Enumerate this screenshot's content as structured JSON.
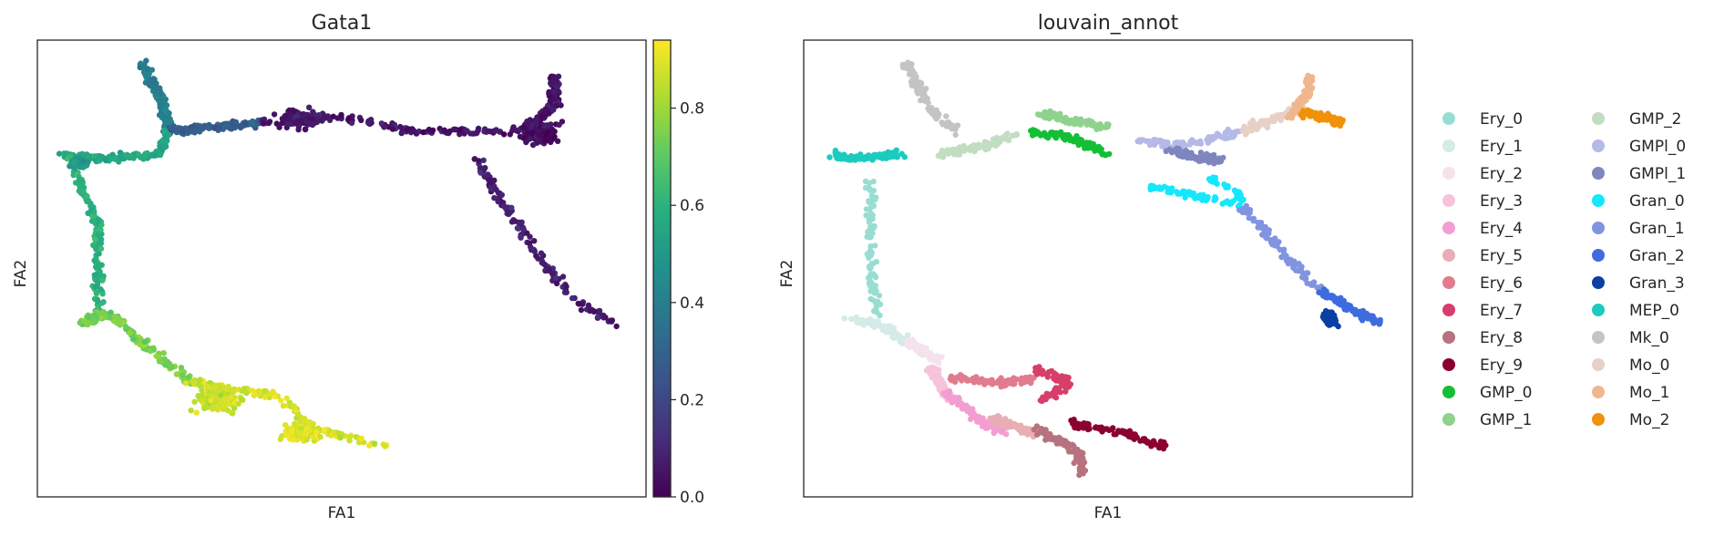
{
  "chart_data": [
    {
      "type": "scatter",
      "title": "Gata1",
      "xlabel": "FA1",
      "ylabel": "FA2",
      "grid": false,
      "colorbar": {
        "colormap": "viridis",
        "range": [
          0.0,
          0.94
        ],
        "ticks": [
          "0.0",
          "0.2",
          "0.4",
          "0.6",
          "0.8"
        ],
        "tick_values": [
          0.0,
          0.2,
          0.4,
          0.6,
          0.8
        ]
      },
      "trajectories": [
        {
          "path": [
            [
              0.17,
              0.05
            ],
            [
              0.205,
              0.13
            ],
            [
              0.215,
              0.2
            ]
          ],
          "value": 0.4
        },
        {
          "path": [
            [
              0.215,
              0.2
            ],
            [
              0.3,
              0.19
            ],
            [
              0.37,
              0.18
            ]
          ],
          "value": 0.28
        },
        {
          "path": [
            [
              0.37,
              0.18
            ],
            [
              0.5,
              0.17
            ],
            [
              0.62,
              0.2
            ],
            [
              0.8,
              0.2
            ],
            [
              0.86,
              0.18
            ]
          ],
          "value": 0.05
        },
        {
          "path": [
            [
              0.8,
              0.2
            ],
            [
              0.85,
              0.14
            ],
            [
              0.85,
              0.08
            ]
          ],
          "value": 0.05
        },
        {
          "path": [
            [
              0.72,
              0.26
            ],
            [
              0.8,
              0.43
            ],
            [
              0.88,
              0.57
            ],
            [
              0.95,
              0.62
            ]
          ],
          "value": 0.08
        },
        {
          "path": [
            [
              0.04,
              0.25
            ],
            [
              0.1,
              0.26
            ],
            [
              0.2,
              0.25
            ],
            [
              0.215,
              0.2
            ]
          ],
          "value": 0.55
        },
        {
          "path": [
            [
              0.05,
              0.25
            ],
            [
              0.1,
              0.4
            ],
            [
              0.1,
              0.6
            ]
          ],
          "value": 0.6
        },
        {
          "path": [
            [
              0.1,
              0.6
            ],
            [
              0.07,
              0.62
            ],
            [
              0.12,
              0.6
            ],
            [
              0.25,
              0.75
            ]
          ],
          "value": 0.75
        },
        {
          "path": [
            [
              0.25,
              0.75
            ],
            [
              0.4,
              0.78
            ],
            [
              0.45,
              0.85
            ],
            [
              0.58,
              0.89
            ]
          ],
          "value": 0.88
        }
      ],
      "clusters": [
        {
          "center": [
            0.43,
            0.17
          ],
          "spread": 0.05,
          "value": 0.06
        },
        {
          "center": [
            0.83,
            0.21
          ],
          "spread": 0.04,
          "value": 0.03
        },
        {
          "center": [
            0.3,
            0.79
          ],
          "spread": 0.06,
          "value": 0.86
        },
        {
          "center": [
            0.43,
            0.86
          ],
          "spread": 0.04,
          "value": 0.9
        },
        {
          "center": [
            0.07,
            0.27
          ],
          "spread": 0.02,
          "value": 0.5
        }
      ]
    },
    {
      "type": "scatter",
      "title": "louvain_annot",
      "xlabel": "FA1",
      "ylabel": "FA2",
      "grid": false,
      "legend": "right",
      "categories": [
        {
          "name": "Ery_0",
          "color": "#98ddd2",
          "path": [
            [
              0.11,
              0.3
            ],
            [
              0.11,
              0.5
            ],
            [
              0.12,
              0.6
            ]
          ]
        },
        {
          "name": "Ery_1",
          "color": "#d4ebe7",
          "path": [
            [
              0.07,
              0.61
            ],
            [
              0.12,
              0.62
            ],
            [
              0.17,
              0.66
            ]
          ]
        },
        {
          "name": "Ery_2",
          "color": "#f4e3ed",
          "path": [
            [
              0.17,
              0.66
            ],
            [
              0.22,
              0.7
            ]
          ]
        },
        {
          "name": "Ery_3",
          "color": "#f5c4dc",
          "path": [
            [
              0.21,
              0.72
            ],
            [
              0.24,
              0.79
            ]
          ]
        },
        {
          "name": "Ery_4",
          "color": "#f39ed2",
          "path": [
            [
              0.23,
              0.77
            ],
            [
              0.3,
              0.84
            ],
            [
              0.33,
              0.86
            ]
          ]
        },
        {
          "name": "Ery_5",
          "color": "#e8aeb4",
          "path": [
            [
              0.31,
              0.83
            ],
            [
              0.38,
              0.86
            ]
          ]
        },
        {
          "name": "Ery_6",
          "color": "#e07c8e",
          "path": [
            [
              0.24,
              0.74
            ],
            [
              0.32,
              0.75
            ],
            [
              0.38,
              0.74
            ]
          ]
        },
        {
          "name": "Ery_7",
          "color": "#d73e6a",
          "path": [
            [
              0.38,
              0.72
            ],
            [
              0.44,
              0.75
            ],
            [
              0.39,
              0.79
            ]
          ]
        },
        {
          "name": "Ery_8",
          "color": "#b6727e",
          "path": [
            [
              0.38,
              0.85
            ],
            [
              0.45,
              0.9
            ],
            [
              0.46,
              0.95
            ]
          ]
        },
        {
          "name": "Ery_9",
          "color": "#8b0030",
          "path": [
            [
              0.44,
              0.84
            ],
            [
              0.53,
              0.86
            ],
            [
              0.59,
              0.89
            ]
          ]
        },
        {
          "name": "GMP_0",
          "color": "#13bf35",
          "path": [
            [
              0.37,
              0.2
            ],
            [
              0.43,
              0.21
            ],
            [
              0.5,
              0.25
            ]
          ]
        },
        {
          "name": "GMP_1",
          "color": "#8ed28e",
          "path": [
            [
              0.39,
              0.16
            ],
            [
              0.45,
              0.18
            ],
            [
              0.5,
              0.19
            ]
          ]
        },
        {
          "name": "GMP_2",
          "color": "#c3ddc2",
          "path": [
            [
              0.22,
              0.25
            ],
            [
              0.3,
              0.23
            ],
            [
              0.35,
              0.21
            ]
          ]
        },
        {
          "name": "GMPl_0",
          "color": "#b4b9e6",
          "path": [
            [
              0.55,
              0.22
            ],
            [
              0.62,
              0.23
            ],
            [
              0.72,
              0.2
            ]
          ]
        },
        {
          "name": "GMPl_1",
          "color": "#7f86bf",
          "path": [
            [
              0.6,
              0.24
            ],
            [
              0.66,
              0.26
            ],
            [
              0.69,
              0.26
            ]
          ]
        },
        {
          "name": "Gran_0",
          "color": "#15e7fc",
          "path": [
            [
              0.66,
              0.3
            ],
            [
              0.71,
              0.33
            ],
            [
              0.72,
              0.36
            ],
            [
              0.56,
              0.32
            ]
          ]
        },
        {
          "name": "Gran_1",
          "color": "#8194e0",
          "path": [
            [
              0.72,
              0.36
            ],
            [
              0.79,
              0.47
            ],
            [
              0.85,
              0.55
            ]
          ]
        },
        {
          "name": "Gran_2",
          "color": "#3e6ce0",
          "path": [
            [
              0.85,
              0.55
            ],
            [
              0.9,
              0.59
            ],
            [
              0.95,
              0.62
            ]
          ]
        },
        {
          "name": "Gran_3",
          "color": "#0b3fa3",
          "path": [
            [
              0.86,
              0.6
            ],
            [
              0.87,
              0.62
            ]
          ]
        },
        {
          "name": "MEP_0",
          "color": "#1bcbbf",
          "path": [
            [
              0.04,
              0.25
            ],
            [
              0.08,
              0.26
            ],
            [
              0.16,
              0.25
            ]
          ]
        },
        {
          "name": "Mk_0",
          "color": "#c4c4c4",
          "path": [
            [
              0.17,
              0.05
            ],
            [
              0.2,
              0.14
            ],
            [
              0.25,
              0.2
            ]
          ]
        },
        {
          "name": "Mo_0",
          "color": "#e7d0c6",
          "path": [
            [
              0.72,
              0.2
            ],
            [
              0.78,
              0.17
            ],
            [
              0.82,
              0.14
            ]
          ]
        },
        {
          "name": "Mo_1",
          "color": "#f0b68d",
          "path": [
            [
              0.8,
              0.17
            ],
            [
              0.83,
              0.11
            ],
            [
              0.83,
              0.08
            ]
          ]
        },
        {
          "name": "Mo_2",
          "color": "#f09209",
          "path": [
            [
              0.82,
              0.16
            ],
            [
              0.86,
              0.17
            ],
            [
              0.88,
              0.18
            ]
          ]
        }
      ]
    }
  ]
}
